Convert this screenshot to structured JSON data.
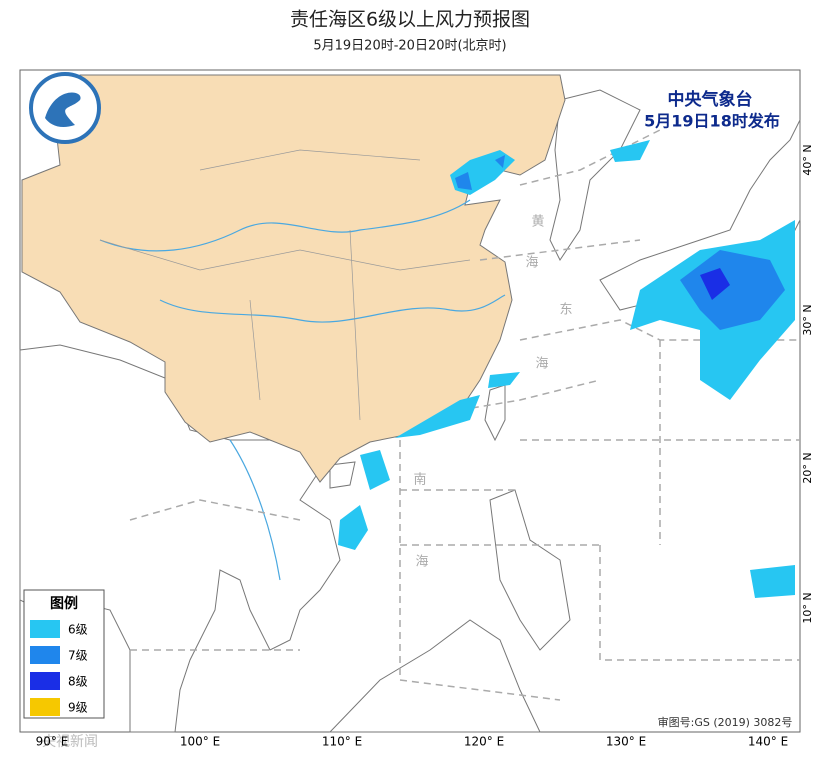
{
  "header": {
    "title": "责任海区6级以上风力预报图",
    "subtitle": "5月19日20时-20日20时(北京时)"
  },
  "issuer": {
    "name": "中央气象台",
    "time": "5月19日18时发布"
  },
  "legend": {
    "title": "图例",
    "items": [
      {
        "label": "6级",
        "color": "#27c6f2"
      },
      {
        "label": "7级",
        "color": "#1f86ec"
      },
      {
        "label": "8级",
        "color": "#1a2ee6"
      },
      {
        "label": "9级",
        "color": "#f6c800"
      }
    ]
  },
  "sea_labels": [
    "黄",
    "海",
    "东",
    "海",
    "南",
    "海"
  ],
  "lon_labels": [
    "90° E",
    "100° E",
    "110° E",
    "120° E",
    "130° E",
    "140° E"
  ],
  "lat_labels": [
    "40° N",
    "30° N",
    "20° N",
    "10° N"
  ],
  "approval": "审图号:GS (2019) 3082号",
  "watermark": "央视新闻"
}
